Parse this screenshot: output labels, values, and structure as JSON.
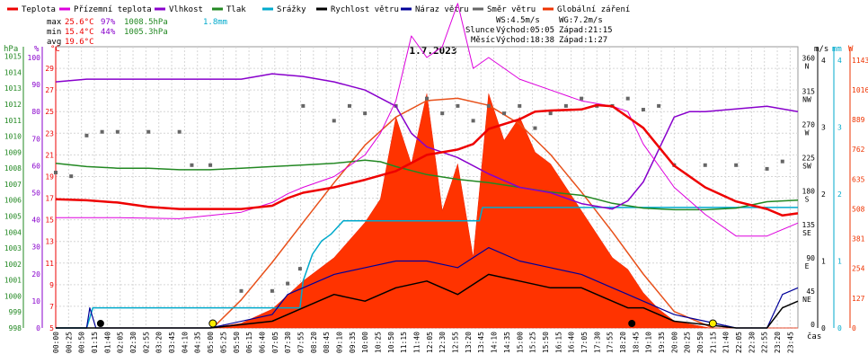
{
  "legend": [
    {
      "label": "Teplota",
      "color": "#ee0000"
    },
    {
      "label": "Přízemní teplota",
      "color": "#dd00dd"
    },
    {
      "label": "Vlhkost",
      "color": "#8800cc"
    },
    {
      "label": "Tlak",
      "color": "#228822"
    },
    {
      "label": "Srážky",
      "color": "#00aacc"
    },
    {
      "label": "Rychlost větru",
      "color": "#000000"
    },
    {
      "label": "Náraz větru",
      "color": "#000099"
    },
    {
      "label": "Směr větru",
      "color": "#666666"
    },
    {
      "label": "Globální záření",
      "color": "#ee3300"
    }
  ],
  "stats": {
    "max": {
      "label": "max",
      "temp": "25.6°C",
      "hum": "97%",
      "press": "1008.5hPa",
      "rain": "1.8mm"
    },
    "min": {
      "label": "min",
      "temp": "15.4°C",
      "hum": "44%",
      "press": "1005.3hPa"
    },
    "avg": {
      "label": "avg",
      "temp": "19.6°C"
    }
  },
  "info": {
    "ws": "WS:4.5m/s",
    "wg": "WG:7.2m/s",
    "sun_label": "Slunce",
    "sun_rise": "Východ:05:05",
    "sun_set": "Západ:21:15",
    "moon_label": "Měsíc",
    "moon_rise": "Východ:18:38",
    "moon_set": "Západ:1:27"
  },
  "title": "1.7.2023",
  "axis_units": {
    "press": "hPa",
    "hum": "%",
    "temp": "°C",
    "wind": "m/s",
    "rain": "mm",
    "rad": "W",
    "time": "čas"
  },
  "axes": {
    "press_ticks": [
      "1015",
      "1014",
      "1013",
      "1012",
      "1011",
      "1010",
      "1009",
      "1008",
      "1007",
      "1006",
      "1005",
      "1004",
      "1003",
      "1002",
      "1001",
      "1000",
      "999",
      "998"
    ],
    "hum_ticks": [
      "100",
      "90",
      "80",
      "70",
      "60",
      "50",
      "40",
      "30",
      "20",
      "10",
      "0"
    ],
    "temp_ticks": [
      "29",
      "27",
      "25",
      "23",
      "21",
      "19",
      "17",
      "15",
      "13",
      "11",
      "9",
      "7",
      "5"
    ],
    "dir_ticks": [
      "360 N",
      "315 NW",
      "270 W",
      "225 SW",
      "180 S",
      "135 SE",
      "90 E",
      "45 NE",
      "0"
    ],
    "wind_ticks": [
      "4",
      "3",
      "2",
      "1",
      "0"
    ],
    "rain_ticks": [
      "4",
      "3",
      "2",
      "1",
      "0"
    ],
    "rad_ticks": [
      "1143",
      "1016",
      "889",
      "762",
      "635",
      "508",
      "381",
      "254",
      "127",
      "0"
    ],
    "x_ticks": [
      "00:00",
      "00:25",
      "00:50",
      "01:15",
      "01:40",
      "02:05",
      "02:30",
      "02:55",
      "03:20",
      "03:45",
      "04:10",
      "04:35",
      "05:00",
      "05:25",
      "05:50",
      "06:15",
      "06:40",
      "07:05",
      "07:30",
      "07:55",
      "08:20",
      "08:45",
      "09:10",
      "09:35",
      "10:00",
      "10:25",
      "10:50",
      "11:15",
      "11:40",
      "12:05",
      "12:30",
      "12:55",
      "13:20",
      "13:45",
      "14:10",
      "14:35",
      "15:00",
      "15:25",
      "15:50",
      "16:15",
      "16:40",
      "17:05",
      "17:30",
      "17:55",
      "18:20",
      "18:45",
      "19:10",
      "19:35",
      "20:00",
      "20:25",
      "20:50",
      "21:15",
      "21:40",
      "22:05",
      "22:30",
      "22:55",
      "23:20",
      "23:45"
    ]
  },
  "chart_data": {
    "type": "line",
    "x_unit": "hours",
    "temperature": {
      "name": "Teplota",
      "unit": "°C",
      "x": [
        0,
        1,
        2,
        3,
        4,
        5,
        6,
        7,
        7.5,
        8,
        9,
        10,
        11,
        12,
        13,
        13.5,
        14,
        15,
        15.5,
        16,
        17,
        17.5,
        18,
        19,
        20,
        21,
        22,
        23,
        23.5,
        24
      ],
      "values": [
        16.9,
        16.8,
        16.6,
        16.2,
        16.0,
        16.0,
        16.0,
        16.3,
        17.0,
        17.5,
        18.0,
        18.7,
        19.5,
        21.0,
        21.5,
        22.0,
        23.4,
        24.3,
        25.0,
        25.1,
        25.2,
        25.6,
        25.5,
        23.5,
        20.0,
        18.0,
        16.7,
        16.0,
        15.4,
        15.6
      ]
    },
    "ground_temperature": {
      "name": "Přízemní teplota",
      "unit": "°C",
      "x": [
        0,
        2,
        4,
        5,
        6,
        7,
        7.5,
        8,
        9,
        10,
        10.5,
        11,
        11.5,
        12,
        12.5,
        13,
        13.5,
        14,
        15,
        16,
        17,
        18,
        18.5,
        19,
        20,
        21,
        22,
        23,
        24
      ],
      "values": [
        15.2,
        15.2,
        15.1,
        15.4,
        15.7,
        16.6,
        17.4,
        18.0,
        19.0,
        21.0,
        23.0,
        26.0,
        32.0,
        30.0,
        31.0,
        35.0,
        29.0,
        30.0,
        28.0,
        27.0,
        26.0,
        25.5,
        25.0,
        22.0,
        18.0,
        15.5,
        13.5,
        13.5,
        14.7
      ]
    },
    "humidity": {
      "name": "Vlhkost",
      "unit": "%",
      "x": [
        0,
        1,
        2,
        3,
        4,
        5,
        6,
        7,
        8,
        9,
        10,
        11,
        11.5,
        12,
        13,
        14,
        15,
        16,
        17,
        18,
        18.5,
        19,
        19.5,
        20,
        20.5,
        21,
        22,
        23,
        23.5,
        24
      ],
      "values": [
        91,
        92,
        92,
        92,
        92,
        92,
        92,
        94,
        93,
        91,
        88,
        82,
        72,
        67,
        63,
        57,
        52,
        50,
        46,
        44,
        47,
        54,
        66,
        78,
        80,
        80,
        81,
        82,
        81,
        80
      ]
    },
    "pressure": {
      "name": "Tlak",
      "unit": "hPa",
      "x": [
        0,
        1,
        2,
        3,
        4,
        5,
        6,
        7,
        8,
        9,
        10,
        10.5,
        11,
        12,
        13,
        14,
        15,
        16,
        17,
        18,
        19,
        20,
        21,
        22,
        23,
        24
      ],
      "values": [
        1008.3,
        1008.1,
        1008.0,
        1008.0,
        1007.9,
        1007.9,
        1008.0,
        1008.1,
        1008.2,
        1008.3,
        1008.5,
        1008.4,
        1008.1,
        1007.6,
        1007.3,
        1007.1,
        1006.8,
        1006.5,
        1006.3,
        1005.8,
        1005.5,
        1005.4,
        1005.4,
        1005.5,
        1005.9,
        1006.0
      ]
    },
    "rain": {
      "name": "Srážky",
      "unit": "mm",
      "x": [
        0,
        1.0,
        1.2,
        7.9,
        8.0,
        8.3,
        8.6,
        8.9,
        9.3,
        13.7,
        13.8,
        24
      ],
      "values": [
        0,
        0,
        0.3,
        0.3,
        0.7,
        1.1,
        1.3,
        1.4,
        1.6,
        1.6,
        1.8,
        1.8
      ]
    },
    "wind_speed": {
      "name": "Rychlost větru",
      "unit": "m/s",
      "x": [
        0,
        5,
        7,
        7.5,
        8,
        9,
        10,
        11,
        12,
        13,
        14,
        15,
        16,
        17,
        18,
        18.5,
        19,
        20,
        21,
        22,
        23,
        23.5,
        24
      ],
      "values": [
        0,
        0,
        0.1,
        0.2,
        0.3,
        0.5,
        0.4,
        0.6,
        0.7,
        0.5,
        0.8,
        0.7,
        0.6,
        0.6,
        0.4,
        0.3,
        0.3,
        0.1,
        0.05,
        0,
        0,
        0.3,
        0.4
      ]
    },
    "wind_gust": {
      "name": "Náraz větru",
      "unit": "m/s",
      "x": [
        0,
        1,
        1.1,
        1.3,
        2,
        4,
        5,
        7,
        7.5,
        8,
        9,
        10,
        11,
        12,
        13,
        14,
        15,
        16,
        17,
        18,
        18.5,
        19,
        20,
        21,
        22,
        23,
        23.5,
        24
      ],
      "values": [
        0,
        0,
        0.3,
        0,
        0,
        0,
        0,
        0.2,
        0.5,
        0.6,
        0.8,
        0.9,
        1.0,
        1.0,
        0.9,
        1.2,
        1.0,
        0.9,
        0.8,
        0.6,
        0.5,
        0.4,
        0.2,
        0.1,
        0,
        0,
        0.5,
        0.6
      ]
    },
    "wind_direction": {
      "name": "Směr větru",
      "unit": "°",
      "x": [
        0,
        0.5,
        1.0,
        1.5,
        2.0,
        3.0,
        4.0,
        4.4,
        5.0,
        6.0,
        7.0,
        7.5,
        7.9,
        8.0,
        9.0,
        9.5,
        10.0,
        11.0,
        12.0,
        12.5,
        13.0,
        13.5,
        14.0,
        14.5,
        15.0,
        15.5,
        16.0,
        16.5,
        17.0,
        17.5,
        18.0,
        18.5,
        19.0,
        19.5,
        20.0,
        21.0,
        22.0,
        23.0,
        23.5
      ],
      "values": [
        210,
        205,
        260,
        265,
        265,
        265,
        265,
        220,
        220,
        50,
        50,
        60,
        80,
        300,
        280,
        300,
        290,
        300,
        310,
        290,
        300,
        280,
        300,
        290,
        300,
        270,
        290,
        300,
        310,
        300,
        300,
        310,
        295,
        300,
        220,
        220,
        220,
        215,
        225
      ]
    },
    "global_radiation": {
      "name": "Globální záření",
      "unit": "W",
      "x": [
        0,
        5.0,
        6,
        7,
        8,
        9,
        10,
        10.5,
        11,
        11.5,
        12,
        12.5,
        13,
        13.5,
        14,
        14.5,
        15,
        15.5,
        16,
        16.5,
        17,
        17.5,
        18,
        18.5,
        19,
        19.5,
        20,
        21.15,
        24
      ],
      "values": [
        0,
        0,
        20,
        80,
        200,
        300,
        450,
        550,
        900,
        700,
        1000,
        500,
        700,
        300,
        1000,
        800,
        900,
        750,
        700,
        600,
        500,
        400,
        300,
        250,
        150,
        80,
        30,
        0,
        0
      ]
    },
    "clear_sky_radiation": {
      "name": "Globální záření",
      "unit": "W",
      "x": [
        5.08,
        6,
        7,
        8,
        9,
        10,
        11,
        12,
        13,
        14,
        15,
        16,
        17,
        18,
        19,
        20,
        21.25
      ],
      "values": [
        0,
        120,
        280,
        450,
        620,
        780,
        900,
        970,
        980,
        950,
        870,
        740,
        580,
        410,
        230,
        70,
        0
      ]
    },
    "sunrise": 5.08,
    "sunset": 21.25,
    "moonrise": 18.63,
    "moonset": 1.45,
    "ranges": {
      "temp": [
        5,
        31
      ],
      "press": [
        998,
        1015.6
      ],
      "hum": [
        0,
        104
      ],
      "wind": [
        0,
        4.2
      ],
      "rain": [
        0,
        4.2
      ],
      "dir": [
        0,
        380
      ],
      "rad": [
        0,
        1200
      ]
    }
  }
}
